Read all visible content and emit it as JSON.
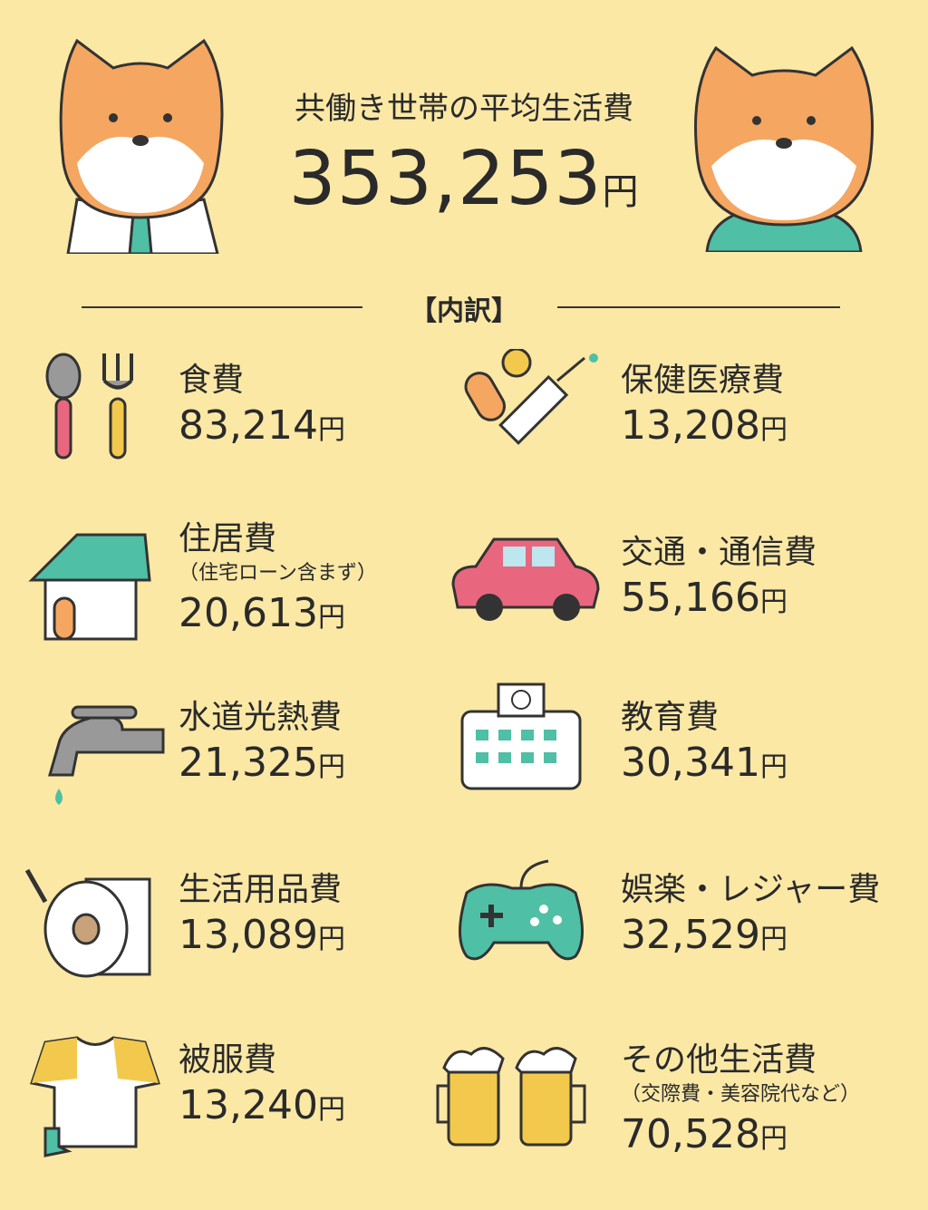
{
  "header": {
    "title": "共働き世帯の平均生活費",
    "total": "353,253",
    "unit": "円"
  },
  "section_label": "【内訳】",
  "items": [
    {
      "label": "食費",
      "note": "",
      "value": "83,214",
      "icon": "spoon-fork-icon"
    },
    {
      "label": "保健医療費",
      "note": "",
      "value": "13,208",
      "icon": "pill-syringe-icon"
    },
    {
      "label": "住居費",
      "note": "（住宅ローン含まず）",
      "value": "20,613",
      "icon": "house-icon"
    },
    {
      "label": "交通・通信費",
      "note": "",
      "value": "55,166",
      "icon": "car-icon"
    },
    {
      "label": "水道光熱費",
      "note": "",
      "value": "21,325",
      "icon": "faucet-icon"
    },
    {
      "label": "教育費",
      "note": "",
      "value": "30,341",
      "icon": "school-icon"
    },
    {
      "label": "生活用品費",
      "note": "",
      "value": "13,089",
      "icon": "toilet-paper-icon"
    },
    {
      "label": "娯楽・レジャー費",
      "note": "",
      "value": "32,529",
      "icon": "game-controller-icon"
    },
    {
      "label": "被服費",
      "note": "",
      "value": "13,240",
      "icon": "tshirt-icon"
    },
    {
      "label": "その他生活費",
      "note": "（交際費・美容院代など）",
      "value": "70,528",
      "icon": "beer-mugs-icon"
    }
  ],
  "colors": {
    "background": "#fbe8a5",
    "dog": "#f5a660",
    "teal": "#4fbfa5",
    "pink": "#e9677e"
  }
}
